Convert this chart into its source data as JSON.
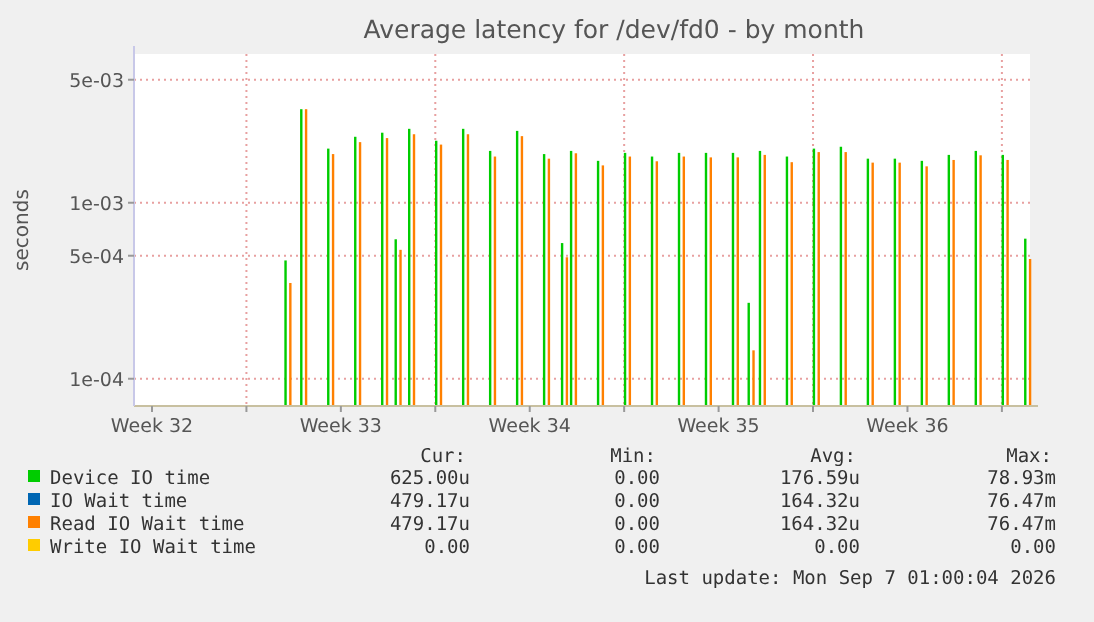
{
  "chart_data": {
    "type": "bar",
    "title": "Average latency for /dev/fd0 - by month",
    "ylabel": "seconds",
    "log": "y",
    "grid": true,
    "legend": "bottom",
    "x": [
      "2026-08-10T14:00",
      "2026-08-11T04:00",
      "2026-08-12T04:00",
      "2026-08-13T04:00",
      "2026-08-14T04:00",
      "2026-08-14T16:00",
      "2026-08-15T04:00",
      "2026-08-16T04:00",
      "2026-08-17T04:00",
      "2026-08-18T04:00",
      "2026-08-19T04:00",
      "2026-08-20T04:00",
      "2026-08-20T20:00",
      "2026-08-21T04:00",
      "2026-08-22T04:00",
      "2026-08-23T04:00",
      "2026-08-24T04:00",
      "2026-08-25T04:00",
      "2026-08-26T04:00",
      "2026-08-27T04:00",
      "2026-08-27T18:00",
      "2026-08-28T04:00",
      "2026-08-29T04:00",
      "2026-08-30T04:00",
      "2026-08-31T04:00",
      "2026-09-01T04:00",
      "2026-09-02T04:00",
      "2026-09-03T04:00",
      "2026-09-04T04:00",
      "2026-09-05T04:00",
      "2026-09-06T04:00",
      "2026-09-07T00:00"
    ],
    "xlim": [
      "2026-08-04T20:00",
      "2026-09-07T01:00"
    ],
    "xticks": [
      {
        "value": "2026-08-05T12:00",
        "label": "Week 32"
      },
      {
        "value": "2026-08-09",
        "label": null
      },
      {
        "value": "2026-08-12T12:00",
        "label": "Week 33"
      },
      {
        "value": "2026-08-16",
        "label": null
      },
      {
        "value": "2026-08-19T12:00",
        "label": "Week 34"
      },
      {
        "value": "2026-08-23",
        "label": null
      },
      {
        "value": "2026-08-26T12:00",
        "label": "Week 35"
      },
      {
        "value": "2026-08-30",
        "label": null
      },
      {
        "value": "2026-09-02T12:00",
        "label": "Week 36"
      },
      {
        "value": "2026-09-06",
        "label": null
      }
    ],
    "ylim": [
      7e-05,
      0.007
    ],
    "yticks": [
      {
        "value": 0.0001,
        "label": "1e-04"
      },
      {
        "value": 0.0005,
        "label": "5e-04"
      },
      {
        "value": 0.001,
        "label": "1e-03"
      },
      {
        "value": 0.005,
        "label": "5e-03"
      }
    ],
    "series": [
      {
        "name": "Device IO time",
        "color": "#00cc00",
        "values": [
          0.00047,
          0.0034,
          0.00203,
          0.00237,
          0.0025,
          0.00062,
          0.00263,
          0.00225,
          0.00263,
          0.00197,
          0.00256,
          0.00189,
          0.00059,
          0.00197,
          0.00173,
          0.00192,
          0.00183,
          0.00192,
          0.00192,
          0.00192,
          0.00027,
          0.00197,
          0.00183,
          0.00203,
          0.00208,
          0.00178,
          0.00178,
          0.00173,
          0.00187,
          0.00197,
          0.00187,
          0.000625
        ]
      },
      {
        "name": "IO Wait time",
        "color": "#0066b3",
        "values": [
          null,
          null,
          null,
          null,
          null,
          null,
          null,
          null,
          null,
          null,
          null,
          null,
          null,
          null,
          null,
          null,
          null,
          null,
          null,
          null,
          null,
          null,
          null,
          null,
          null,
          null,
          null,
          null,
          null,
          null,
          null,
          null
        ]
      },
      {
        "name": "Read IO Wait time",
        "color": "#ff8000",
        "values": [
          0.00035,
          0.0034,
          0.00189,
          0.00221,
          0.00233,
          0.00054,
          0.00245,
          0.00214,
          0.00245,
          0.00183,
          0.00239,
          0.00178,
          0.00049,
          0.00191,
          0.00163,
          0.00183,
          0.00172,
          0.00183,
          0.00181,
          0.00181,
          0.000145,
          0.00187,
          0.0017,
          0.00194,
          0.00194,
          0.00169,
          0.00169,
          0.00161,
          0.00175,
          0.00186,
          0.00175,
          0.000479
        ]
      },
      {
        "name": "Write IO Wait time",
        "color": "#ffcc00",
        "values": [
          null,
          null,
          null,
          null,
          null,
          null,
          null,
          null,
          null,
          null,
          null,
          null,
          null,
          null,
          null,
          null,
          null,
          null,
          null,
          null,
          null,
          null,
          null,
          null,
          null,
          null,
          null,
          null,
          null,
          null,
          null,
          null
        ]
      }
    ],
    "annotations": [
      "Cur:",
      "Min:",
      "Avg:",
      "Max:",
      "625.00u",
      "0.00",
      "176.59u",
      "78.93m",
      "479.17u",
      "0.00",
      "164.32u",
      "76.47m",
      "479.17u",
      "0.00",
      "164.32u",
      "76.47m",
      "0.00",
      "0.00",
      "0.00",
      "0.00",
      "Last update: Mon Sep  7 01:00:04 2026"
    ]
  }
}
